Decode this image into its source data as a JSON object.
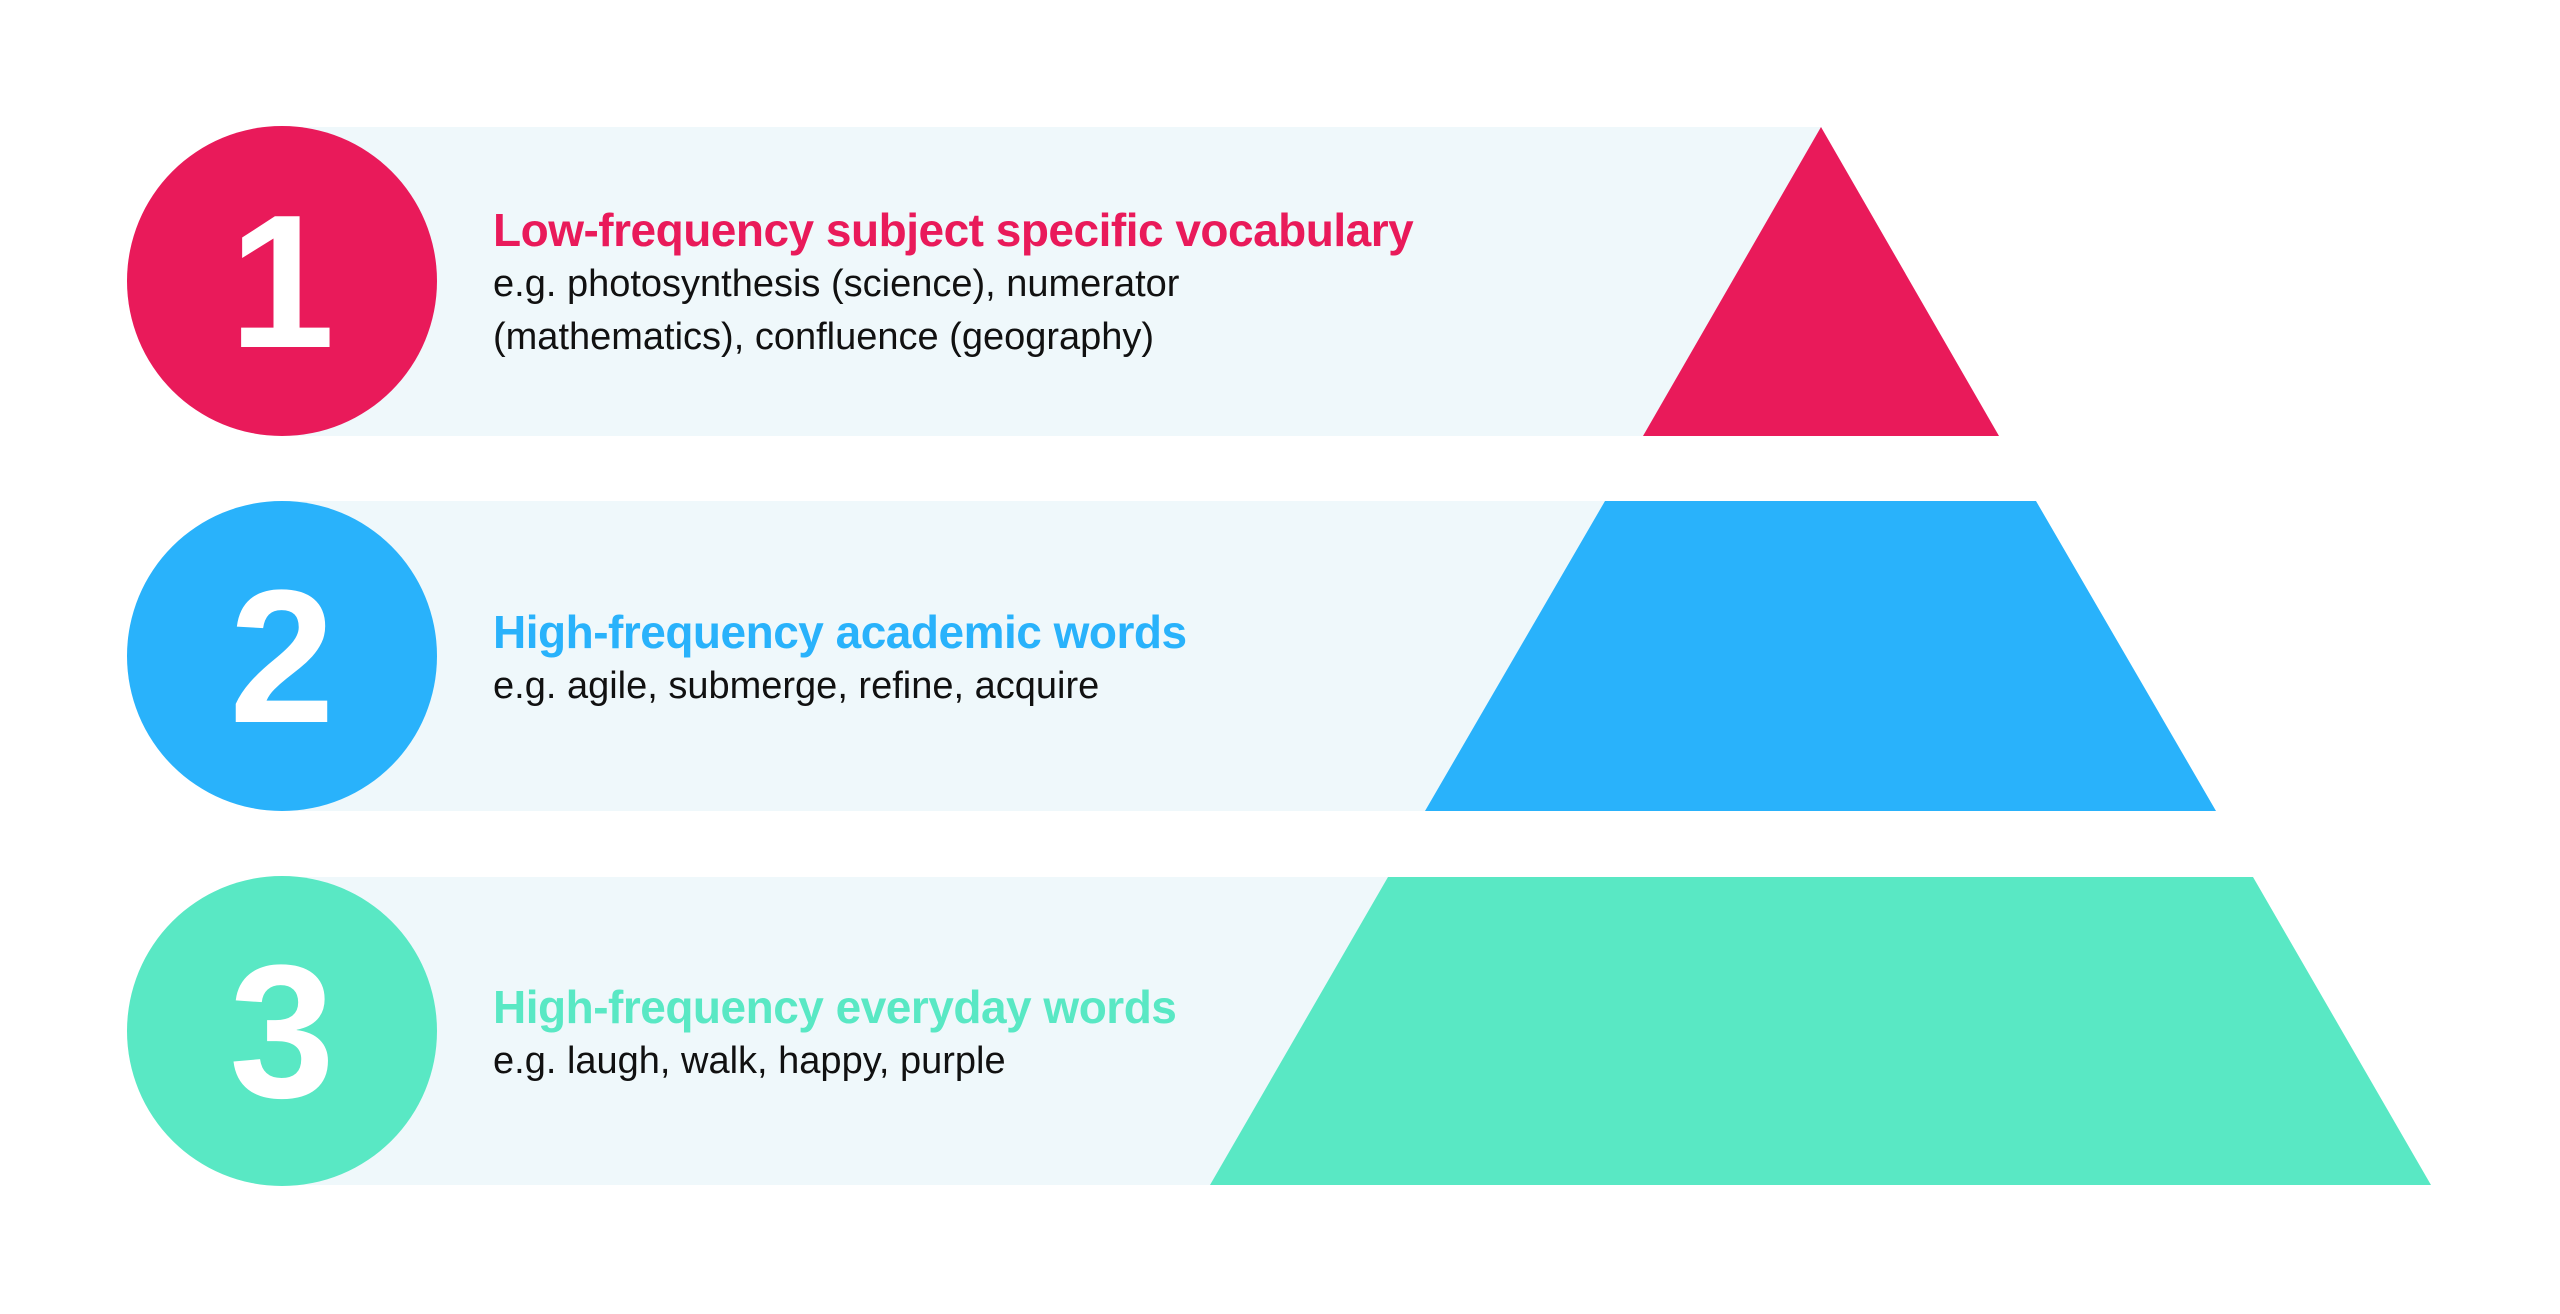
{
  "colors": {
    "level1": "#e91a5a",
    "level2": "#29b2fb",
    "level3": "#59e8c4",
    "band": "#eff8fb"
  },
  "levels": [
    {
      "number": "1",
      "title": "Low-frequency subject specific vocabulary",
      "examples": "e.g. photosynthesis (science), numerator (mathematics), confluence (geography)"
    },
    {
      "number": "2",
      "title": "High-frequency academic words",
      "examples": "e.g. agile, submerge, refine, acquire"
    },
    {
      "number": "3",
      "title": "High-frequency everyday words",
      "examples": "e.g. laugh, walk, happy, purple"
    }
  ]
}
